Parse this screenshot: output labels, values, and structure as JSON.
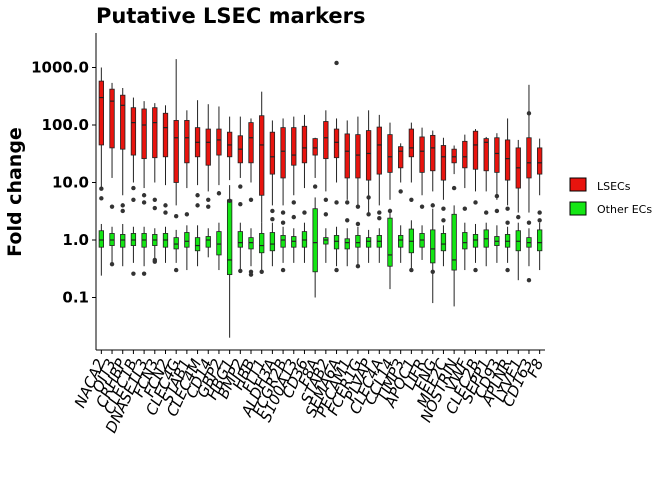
{
  "chart_data": {
    "type": "box",
    "title": "Putative LSEC markers",
    "ylabel": "Fold change",
    "xlabel": "",
    "yscale": "log10",
    "ylim": [
      0.012,
      3500
    ],
    "yticks": [
      0.1,
      1.0,
      10.0,
      100.0,
      1000.0
    ],
    "ytick_labels": [
      "0.1",
      "1.0",
      "10.0",
      "100.0",
      "1000.0"
    ],
    "grid": false,
    "legend_position": "right",
    "categories": [
      "NACA2",
      "OIT3",
      "CRHBP",
      "CLEC1B",
      "DNASE1L3",
      "FCN3",
      "FCN2",
      "CLEC4G",
      "STAB1",
      "CLEC4M",
      "CD14",
      "GBP2",
      "HBG1",
      "BMP2",
      "HBB",
      "FLT1",
      "ALDH3A",
      "FCGR2B",
      "S100A13",
      "CD36",
      "F8A",
      "STAB2",
      "SEMA6A",
      "PECAM1",
      "FCER1G",
      "PLVAP",
      "CLEC4A",
      "CCL14",
      "TIMP3",
      "APOC1",
      "LIFR",
      "ENG",
      "MEF2C",
      "NOSTRIN",
      "VWF",
      "CLEC2B",
      "SEPP1",
      "CD93",
      "APLNR",
      "LYVE1",
      "CD163",
      "F8"
    ],
    "series": [
      {
        "name": "LSECs",
        "color": "#e8140e",
        "boxes": [
          {
            "q1": 45,
            "median": 300,
            "q3": 580,
            "low": 8,
            "high": 1000
          },
          {
            "q1": 40,
            "median": 260,
            "q3": 420,
            "low": 12,
            "high": 540
          },
          {
            "q1": 38,
            "median": 220,
            "q3": 330,
            "low": 6,
            "high": 440
          },
          {
            "q1": 30,
            "median": 110,
            "q3": 200,
            "low": 10,
            "high": 300
          },
          {
            "q1": 26,
            "median": 100,
            "q3": 190,
            "low": 8,
            "high": 260
          },
          {
            "q1": 27,
            "median": 110,
            "q3": 200,
            "low": 10,
            "high": 240
          },
          {
            "q1": 28,
            "median": 90,
            "q3": 160,
            "low": 9,
            "high": 220
          },
          {
            "q1": 10,
            "median": 60,
            "q3": 120,
            "low": 4,
            "high": 1400
          },
          {
            "q1": 22,
            "median": 60,
            "q3": 120,
            "low": 8,
            "high": 180
          },
          {
            "q1": 28,
            "median": 50,
            "q3": 90,
            "low": 9,
            "high": 270
          },
          {
            "q1": 20,
            "median": 50,
            "q3": 85,
            "low": 7,
            "high": 230
          },
          {
            "q1": 30,
            "median": 55,
            "q3": 85,
            "low": 9,
            "high": 210
          },
          {
            "q1": 28,
            "median": 45,
            "q3": 75,
            "low": 11,
            "high": 140
          },
          {
            "q1": 22,
            "median": 38,
            "q3": 65,
            "low": 12,
            "high": 140
          },
          {
            "q1": 22,
            "median": 60,
            "q3": 110,
            "low": 10,
            "high": 130
          },
          {
            "q1": 6,
            "median": 45,
            "q3": 145,
            "low": 2,
            "high": 380
          },
          {
            "q1": 14,
            "median": 28,
            "q3": 75,
            "low": 4,
            "high": 120
          },
          {
            "q1": 12,
            "median": 35,
            "q3": 90,
            "low": 4,
            "high": 130
          },
          {
            "q1": 20,
            "median": 30,
            "q3": 90,
            "low": 6,
            "high": 140
          },
          {
            "q1": 22,
            "median": 40,
            "q3": 95,
            "low": 8,
            "high": 150
          },
          {
            "q1": 30,
            "median": 40,
            "q3": 58,
            "low": 12,
            "high": 60
          },
          {
            "q1": 26,
            "median": 60,
            "q3": 115,
            "low": 7,
            "high": 180
          },
          {
            "q1": 27,
            "median": 50,
            "q3": 85,
            "low": 10,
            "high": 130
          },
          {
            "q1": 12,
            "median": 35,
            "q3": 70,
            "low": 5,
            "high": 120
          },
          {
            "q1": 12,
            "median": 30,
            "q3": 68,
            "low": 4,
            "high": 140
          },
          {
            "q1": 11,
            "median": 32,
            "q3": 80,
            "low": 3,
            "high": 180
          },
          {
            "q1": 14,
            "median": 45,
            "q3": 92,
            "low": 4,
            "high": 150
          },
          {
            "q1": 15,
            "median": 28,
            "q3": 68,
            "low": 5,
            "high": 110
          },
          {
            "q1": 18,
            "median": 35,
            "q3": 42,
            "low": 10,
            "high": 48
          },
          {
            "q1": 28,
            "median": 40,
            "q3": 85,
            "low": 10,
            "high": 110
          },
          {
            "q1": 15,
            "median": 35,
            "q3": 62,
            "low": 6,
            "high": 90
          },
          {
            "q1": 16,
            "median": 40,
            "q3": 66,
            "low": 7,
            "high": 80
          },
          {
            "q1": 11,
            "median": 28,
            "q3": 44,
            "low": 5,
            "high": 60
          },
          {
            "q1": 22,
            "median": 28,
            "q3": 38,
            "low": 14,
            "high": 44
          },
          {
            "q1": 18,
            "median": 28,
            "q3": 52,
            "low": 8,
            "high": 68
          },
          {
            "q1": 17,
            "median": 45,
            "q3": 78,
            "low": 7,
            "high": 85
          },
          {
            "q1": 16,
            "median": 50,
            "q3": 58,
            "low": 7,
            "high": 62
          },
          {
            "q1": 15,
            "median": 32,
            "q3": 60,
            "low": 5,
            "high": 72
          },
          {
            "q1": 11,
            "median": 26,
            "q3": 55,
            "low": 4,
            "high": 130
          },
          {
            "q1": 8,
            "median": 18,
            "q3": 40,
            "low": 3,
            "high": 55
          },
          {
            "q1": 12,
            "median": 22,
            "q3": 60,
            "low": 3,
            "high": 500
          },
          {
            "q1": 14,
            "median": 22,
            "q3": 40,
            "low": 6,
            "high": 58
          }
        ]
      },
      {
        "name": "Other ECs",
        "color": "#14e614",
        "boxes": [
          {
            "q1": 0.75,
            "median": 1.0,
            "q3": 1.45,
            "low": 0.24,
            "high": 1.9
          },
          {
            "q1": 0.8,
            "median": 1.0,
            "q3": 1.3,
            "low": 0.4,
            "high": 1.7
          },
          {
            "q1": 0.75,
            "median": 1.0,
            "q3": 1.25,
            "low": 0.35,
            "high": 1.9
          },
          {
            "q1": 0.8,
            "median": 1.0,
            "q3": 1.3,
            "low": 0.4,
            "high": 1.7
          },
          {
            "q1": 0.75,
            "median": 1.0,
            "q3": 1.3,
            "low": 0.35,
            "high": 1.7
          },
          {
            "q1": 0.8,
            "median": 1.0,
            "q3": 1.25,
            "low": 0.45,
            "high": 1.6
          },
          {
            "q1": 0.75,
            "median": 1.0,
            "q3": 1.3,
            "low": 0.4,
            "high": 1.7
          },
          {
            "q1": 0.7,
            "median": 0.85,
            "q3": 1.1,
            "low": 0.4,
            "high": 1.5
          },
          {
            "q1": 0.75,
            "median": 0.95,
            "q3": 1.35,
            "low": 0.3,
            "high": 1.8
          },
          {
            "q1": 0.65,
            "median": 0.8,
            "q3": 1.1,
            "low": 0.35,
            "high": 1.8
          },
          {
            "q1": 0.75,
            "median": 1.0,
            "q3": 1.15,
            "low": 0.5,
            "high": 1.6
          },
          {
            "q1": 0.55,
            "median": 0.85,
            "q3": 1.4,
            "low": 0.3,
            "high": 2.0
          },
          {
            "q1": 0.25,
            "median": 0.45,
            "q3": 5.0,
            "low": 0.02,
            "high": 9.0
          },
          {
            "q1": 0.75,
            "median": 0.9,
            "q3": 1.4,
            "low": 0.3,
            "high": 2.0
          },
          {
            "q1": 0.7,
            "median": 0.9,
            "q3": 1.1,
            "low": 0.35,
            "high": 1.6
          },
          {
            "q1": 0.6,
            "median": 0.8,
            "q3": 1.3,
            "low": 0.3,
            "high": 2.0
          },
          {
            "q1": 0.65,
            "median": 0.85,
            "q3": 1.35,
            "low": 0.35,
            "high": 2.0
          },
          {
            "q1": 0.75,
            "median": 1.0,
            "q3": 1.2,
            "low": 0.4,
            "high": 1.7
          },
          {
            "q1": 0.75,
            "median": 0.95,
            "q3": 1.15,
            "low": 0.4,
            "high": 1.6
          },
          {
            "q1": 0.75,
            "median": 1.0,
            "q3": 1.4,
            "low": 0.4,
            "high": 2.0
          },
          {
            "q1": 0.28,
            "median": 0.9,
            "q3": 3.5,
            "low": 0.1,
            "high": 5.5
          },
          {
            "q1": 0.85,
            "median": 1.0,
            "q3": 1.1,
            "low": 0.4,
            "high": 1.6
          },
          {
            "q1": 0.7,
            "median": 0.95,
            "q3": 1.2,
            "low": 0.35,
            "high": 1.7
          },
          {
            "q1": 0.7,
            "median": 0.9,
            "q3": 1.05,
            "low": 0.35,
            "high": 1.6
          },
          {
            "q1": 0.75,
            "median": 0.9,
            "q3": 1.2,
            "low": 0.35,
            "high": 1.7
          },
          {
            "q1": 0.75,
            "median": 0.95,
            "q3": 1.1,
            "low": 0.4,
            "high": 1.5
          },
          {
            "q1": 0.75,
            "median": 0.95,
            "q3": 1.2,
            "low": 0.4,
            "high": 1.6
          },
          {
            "q1": 0.35,
            "median": 0.55,
            "q3": 2.4,
            "low": 0.14,
            "high": 3.5
          },
          {
            "q1": 0.75,
            "median": 1.0,
            "q3": 1.2,
            "low": 0.4,
            "high": 1.8
          },
          {
            "q1": 0.6,
            "median": 0.95,
            "q3": 1.55,
            "low": 0.3,
            "high": 2.2
          },
          {
            "q1": 0.75,
            "median": 1.0,
            "q3": 1.3,
            "low": 0.45,
            "high": 1.8
          },
          {
            "q1": 0.4,
            "median": 0.7,
            "q3": 1.5,
            "low": 0.08,
            "high": 3.5
          },
          {
            "q1": 0.65,
            "median": 0.85,
            "q3": 1.3,
            "low": 0.35,
            "high": 1.8
          },
          {
            "q1": 0.3,
            "median": 0.45,
            "q3": 2.8,
            "low": 0.07,
            "high": 4.0
          },
          {
            "q1": 0.7,
            "median": 0.9,
            "q3": 1.35,
            "low": 0.3,
            "high": 2.0
          },
          {
            "q1": 0.75,
            "median": 1.0,
            "q3": 1.25,
            "low": 0.4,
            "high": 1.9
          },
          {
            "q1": 0.75,
            "median": 1.05,
            "q3": 1.5,
            "low": 0.35,
            "high": 2.0
          },
          {
            "q1": 0.8,
            "median": 0.95,
            "q3": 1.15,
            "low": 0.4,
            "high": 1.8
          },
          {
            "q1": 0.75,
            "median": 0.95,
            "q3": 1.25,
            "low": 0.4,
            "high": 1.7
          },
          {
            "q1": 0.65,
            "median": 0.95,
            "q3": 1.45,
            "low": 0.2,
            "high": 2.0
          },
          {
            "q1": 0.75,
            "median": 0.9,
            "q3": 1.1,
            "low": 0.35,
            "high": 1.6
          },
          {
            "q1": 0.65,
            "median": 0.9,
            "q3": 1.5,
            "low": 0.3,
            "high": 2.0
          }
        ]
      }
    ],
    "outliers_lsec": [
      [
        0,
        5.3
      ],
      [
        0,
        7.8
      ],
      [
        1,
        3.8
      ],
      [
        2,
        4.0
      ],
      [
        2,
        3.2
      ],
      [
        3,
        5.0
      ],
      [
        3,
        8.0
      ],
      [
        4,
        6.0
      ],
      [
        4,
        4.5
      ],
      [
        5,
        5.0
      ],
      [
        5,
        3.6
      ],
      [
        6,
        4.0
      ],
      [
        6,
        3.0
      ],
      [
        7,
        2.6
      ],
      [
        8,
        2.8
      ],
      [
        9,
        4.0
      ],
      [
        9,
        6.0
      ],
      [
        10,
        3.8
      ],
      [
        10,
        5.0
      ],
      [
        11,
        6.5
      ],
      [
        12,
        4.8
      ],
      [
        13,
        4.2
      ],
      [
        13,
        8.5
      ],
      [
        14,
        5.0
      ],
      [
        16,
        2.3
      ],
      [
        16,
        3.2
      ],
      [
        17,
        2.0
      ],
      [
        17,
        3.0
      ],
      [
        18,
        2.5
      ],
      [
        18,
        4.5
      ],
      [
        19,
        3.0
      ],
      [
        20,
        8.5
      ],
      [
        21,
        2.8
      ],
      [
        21,
        5.0
      ],
      [
        22,
        1200
      ],
      [
        22,
        4.5
      ],
      [
        23,
        2.2
      ],
      [
        23,
        4.5
      ],
      [
        24,
        1.9
      ],
      [
        24,
        3.8
      ],
      [
        25,
        2.8
      ],
      [
        25,
        5.5
      ],
      [
        26,
        2.4
      ],
      [
        26,
        3.0
      ],
      [
        27,
        3.2
      ],
      [
        28,
        7.0
      ],
      [
        29,
        5.0
      ],
      [
        30,
        3.8
      ],
      [
        31,
        4.0
      ],
      [
        32,
        2.2
      ],
      [
        32,
        3.5
      ],
      [
        33,
        8.0
      ],
      [
        34,
        3.5
      ],
      [
        35,
        4.5
      ],
      [
        36,
        3.0
      ],
      [
        37,
        5.8
      ],
      [
        37,
        3.2
      ],
      [
        38,
        2.0
      ],
      [
        38,
        3.5
      ],
      [
        39,
        2.5
      ],
      [
        40,
        160
      ],
      [
        40,
        2.0
      ],
      [
        41,
        3.0
      ],
      [
        41,
        2.2
      ]
    ],
    "outliers_other": [
      [
        1,
        0.38
      ],
      [
        3,
        0.26
      ],
      [
        4,
        0.26
      ],
      [
        5,
        0.42
      ],
      [
        5,
        0.45
      ],
      [
        7,
        0.3
      ],
      [
        13,
        0.29
      ],
      [
        14,
        0.25
      ],
      [
        14,
        0.28
      ],
      [
        15,
        0.28
      ],
      [
        17,
        0.3
      ],
      [
        22,
        0.3
      ],
      [
        24,
        0.35
      ],
      [
        29,
        0.3
      ],
      [
        31,
        0.28
      ],
      [
        35,
        0.3
      ],
      [
        38,
        0.3
      ],
      [
        40,
        0.2
      ]
    ]
  }
}
